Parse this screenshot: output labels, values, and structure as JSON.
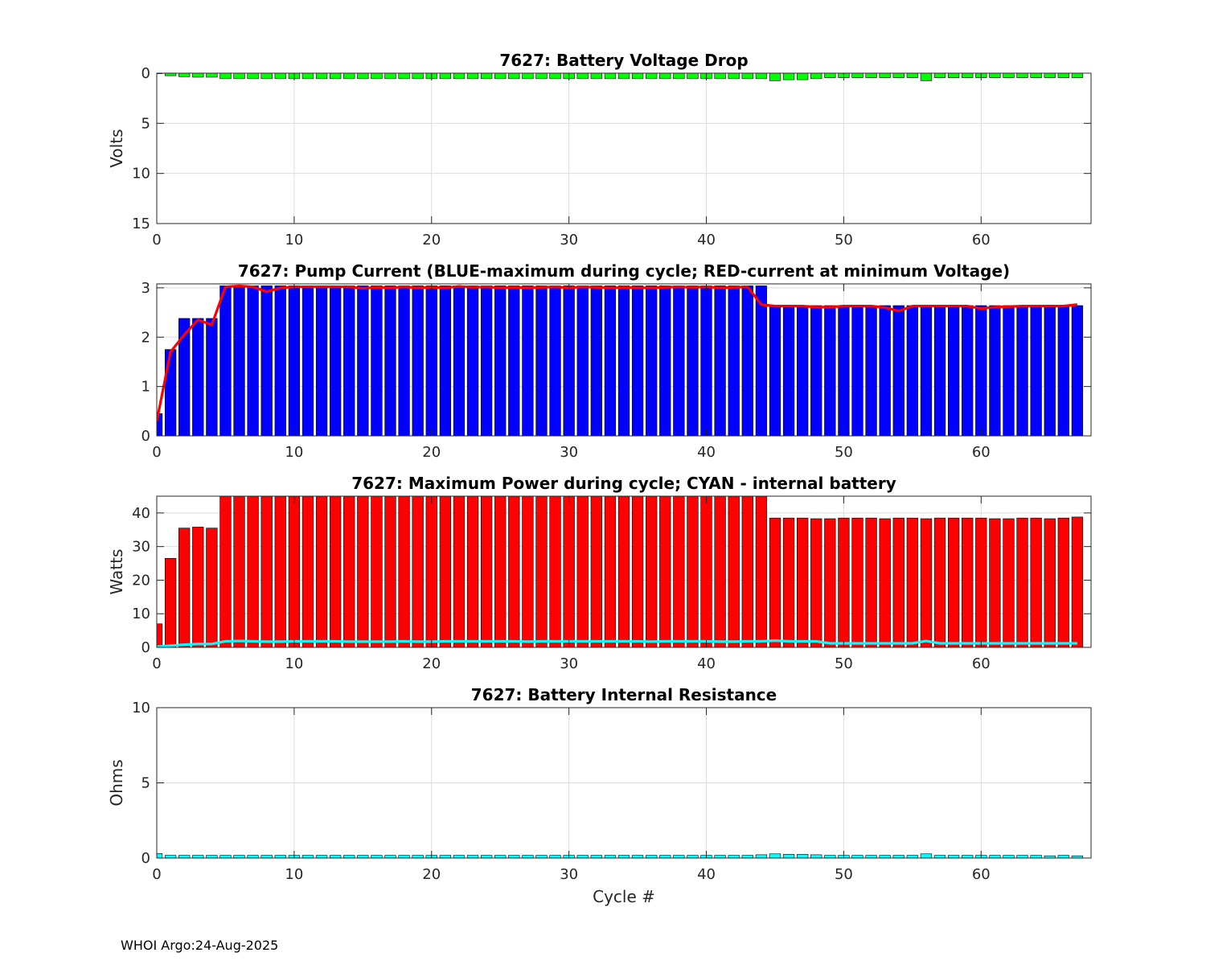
{
  "footer": "WHOI Argo:24-Aug-2025",
  "colors": {
    "voltage_bar": "#00ff00",
    "current_bar": "#0000ff",
    "current_line": "#ff0000",
    "power_bar": "#ff0000",
    "power_line": "#00ffff",
    "resistance_bar": "#00ffff",
    "grid": "#dcdcdc"
  },
  "chart_data": [
    {
      "id": "voltage",
      "type": "bar",
      "title": "7627: Battery Voltage Drop",
      "xlabel": "",
      "ylabel": "Volts",
      "xlim": [
        0,
        68
      ],
      "ylim": [
        0,
        15
      ],
      "y_reversed": true,
      "xticks": [
        0,
        10,
        20,
        30,
        40,
        50,
        60
      ],
      "yticks": [
        0,
        5,
        10,
        15
      ],
      "grid": true,
      "x": [
        0,
        1,
        2,
        3,
        4,
        5,
        6,
        7,
        8,
        9,
        10,
        11,
        12,
        13,
        14,
        15,
        16,
        17,
        18,
        19,
        20,
        21,
        22,
        23,
        24,
        25,
        26,
        27,
        28,
        29,
        30,
        31,
        32,
        33,
        34,
        35,
        36,
        37,
        38,
        39,
        40,
        41,
        42,
        43,
        44,
        45,
        46,
        47,
        48,
        49,
        50,
        51,
        52,
        53,
        54,
        55,
        56,
        57,
        58,
        59,
        60,
        61,
        62,
        63,
        64,
        65,
        66,
        67
      ],
      "values": [
        0.05,
        0.25,
        0.35,
        0.4,
        0.4,
        0.55,
        0.55,
        0.55,
        0.55,
        0.55,
        0.55,
        0.55,
        0.55,
        0.55,
        0.55,
        0.55,
        0.55,
        0.55,
        0.55,
        0.55,
        0.55,
        0.55,
        0.55,
        0.55,
        0.55,
        0.55,
        0.55,
        0.55,
        0.55,
        0.55,
        0.55,
        0.55,
        0.55,
        0.55,
        0.55,
        0.55,
        0.55,
        0.55,
        0.55,
        0.55,
        0.55,
        0.55,
        0.55,
        0.55,
        0.55,
        0.75,
        0.65,
        0.65,
        0.55,
        0.45,
        0.45,
        0.45,
        0.45,
        0.45,
        0.45,
        0.45,
        0.75,
        0.45,
        0.45,
        0.45,
        0.45,
        0.45,
        0.45,
        0.45,
        0.45,
        0.45,
        0.45,
        0.45
      ]
    },
    {
      "id": "current",
      "type": "bar",
      "title": "7627: Pump Current (BLUE-maximum during cycle; RED-current at minimum Voltage)",
      "xlabel": "",
      "ylabel": "",
      "xlim": [
        0,
        68
      ],
      "ylim": [
        0,
        3.08
      ],
      "y_reversed": false,
      "xticks": [
        0,
        10,
        20,
        30,
        40,
        50,
        60
      ],
      "yticks": [
        0,
        1,
        2,
        3
      ],
      "grid": true,
      "x": [
        0,
        1,
        2,
        3,
        4,
        5,
        6,
        7,
        8,
        9,
        10,
        11,
        12,
        13,
        14,
        15,
        16,
        17,
        18,
        19,
        20,
        21,
        22,
        23,
        24,
        25,
        26,
        27,
        28,
        29,
        30,
        31,
        32,
        33,
        34,
        35,
        36,
        37,
        38,
        39,
        40,
        41,
        42,
        43,
        44,
        45,
        46,
        47,
        48,
        49,
        50,
        51,
        52,
        53,
        54,
        55,
        56,
        57,
        58,
        59,
        60,
        61,
        62,
        63,
        64,
        65,
        66,
        67
      ],
      "values": [
        0.45,
        1.75,
        2.38,
        2.38,
        2.38,
        3.04,
        3.04,
        3.04,
        3.04,
        3.04,
        3.04,
        3.04,
        3.04,
        3.04,
        3.04,
        3.04,
        3.04,
        3.04,
        3.04,
        3.04,
        3.04,
        3.04,
        3.04,
        3.04,
        3.04,
        3.04,
        3.04,
        3.04,
        3.04,
        3.04,
        3.04,
        3.04,
        3.04,
        3.04,
        3.04,
        3.04,
        3.04,
        3.04,
        3.04,
        3.04,
        3.04,
        3.04,
        3.04,
        3.04,
        3.04,
        2.64,
        2.64,
        2.64,
        2.64,
        2.64,
        2.64,
        2.64,
        2.64,
        2.64,
        2.64,
        2.64,
        2.64,
        2.64,
        2.64,
        2.64,
        2.64,
        2.64,
        2.64,
        2.64,
        2.64,
        2.64,
        2.64,
        2.64
      ],
      "line_name": "current at minimum Voltage",
      "line": [
        0.3,
        1.7,
        2.05,
        2.35,
        2.25,
        3.02,
        3.04,
        3.02,
        2.92,
        3.0,
        3.02,
        3.02,
        3.02,
        3.02,
        3.02,
        2.99,
        3.01,
        3.0,
        3.02,
        3.0,
        3.01,
        3.0,
        3.03,
        3.01,
        3.02,
        3.0,
        3.01,
        3.0,
        3.01,
        3.02,
        3.0,
        3.02,
        3.01,
        3.0,
        3.01,
        3.0,
        3.0,
        3.01,
        3.02,
        3.01,
        3.02,
        3.0,
        3.01,
        3.02,
        2.66,
        2.63,
        2.63,
        2.63,
        2.61,
        2.61,
        2.63,
        2.63,
        2.63,
        2.6,
        2.53,
        2.63,
        2.63,
        2.63,
        2.63,
        2.63,
        2.58,
        2.61,
        2.62,
        2.63,
        2.63,
        2.63,
        2.63,
        2.66
      ]
    },
    {
      "id": "power",
      "type": "bar",
      "title": "7627: Maximum Power during cycle; CYAN - internal battery",
      "xlabel": "",
      "ylabel": "Watts",
      "xlim": [
        0,
        68
      ],
      "ylim": [
        0,
        45
      ],
      "y_reversed": false,
      "xticks": [
        0,
        10,
        20,
        30,
        40,
        50,
        60
      ],
      "yticks": [
        0,
        10,
        20,
        30,
        40
      ],
      "grid": true,
      "x": [
        0,
        1,
        2,
        3,
        4,
        5,
        6,
        7,
        8,
        9,
        10,
        11,
        12,
        13,
        14,
        15,
        16,
        17,
        18,
        19,
        20,
        21,
        22,
        23,
        24,
        25,
        26,
        27,
        28,
        29,
        30,
        31,
        32,
        33,
        34,
        35,
        36,
        37,
        38,
        39,
        40,
        41,
        42,
        43,
        44,
        45,
        46,
        47,
        48,
        49,
        50,
        51,
        52,
        53,
        54,
        55,
        56,
        57,
        58,
        59,
        60,
        61,
        62,
        63,
        64,
        65,
        66,
        67
      ],
      "values": [
        7,
        26.5,
        35.5,
        35.8,
        35.5,
        45,
        45,
        45,
        45,
        45,
        45,
        45,
        45,
        45,
        45,
        45,
        45,
        45,
        45,
        45,
        45,
        45,
        45,
        45,
        45,
        45,
        45,
        45,
        45,
        45,
        45,
        45,
        45,
        45,
        45,
        45,
        45,
        45,
        45,
        45,
        45,
        45,
        45,
        45,
        45,
        38.5,
        38.5,
        38.5,
        38.3,
        38.3,
        38.5,
        38.5,
        38.5,
        38.3,
        38.5,
        38.5,
        38.3,
        38.5,
        38.5,
        38.5,
        38.5,
        38.3,
        38.3,
        38.5,
        38.5,
        38.3,
        38.5,
        38.8
      ],
      "line_name": "internal battery",
      "line": [
        0.2,
        0.5,
        0.8,
        1.0,
        1.0,
        1.8,
        1.9,
        1.8,
        1.7,
        1.7,
        1.8,
        1.8,
        1.8,
        1.8,
        1.7,
        1.7,
        1.7,
        1.7,
        1.8,
        1.7,
        1.7,
        1.8,
        1.8,
        1.8,
        1.8,
        1.8,
        1.8,
        1.7,
        1.8,
        1.8,
        1.8,
        1.8,
        1.8,
        1.8,
        1.8,
        1.8,
        1.7,
        1.8,
        1.8,
        1.8,
        1.8,
        1.7,
        1.7,
        1.8,
        1.8,
        2.0,
        1.8,
        1.8,
        1.8,
        1.2,
        1.2,
        1.2,
        1.2,
        1.2,
        1.2,
        1.2,
        1.9,
        1.2,
        1.2,
        1.2,
        1.2,
        1.2,
        1.2,
        1.2,
        1.2,
        1.2,
        1.2,
        1.2
      ]
    },
    {
      "id": "resistance",
      "type": "bar",
      "title": "7627: Battery Internal Resistance",
      "xlabel": "Cycle #",
      "ylabel": "Ohms",
      "xlim": [
        0,
        68
      ],
      "ylim": [
        0,
        10
      ],
      "y_reversed": false,
      "xticks": [
        0,
        10,
        20,
        30,
        40,
        50,
        60
      ],
      "yticks": [
        0,
        5,
        10
      ],
      "grid": true,
      "x": [
        0,
        1,
        2,
        3,
        4,
        5,
        6,
        7,
        8,
        9,
        10,
        11,
        12,
        13,
        14,
        15,
        16,
        17,
        18,
        19,
        20,
        21,
        22,
        23,
        24,
        25,
        26,
        27,
        28,
        29,
        30,
        31,
        32,
        33,
        34,
        35,
        36,
        37,
        38,
        39,
        40,
        41,
        42,
        43,
        44,
        45,
        46,
        47,
        48,
        49,
        50,
        51,
        52,
        53,
        54,
        55,
        56,
        57,
        58,
        59,
        60,
        61,
        62,
        63,
        64,
        65,
        66,
        67
      ],
      "values": [
        0.3,
        0.18,
        0.18,
        0.18,
        0.18,
        0.18,
        0.18,
        0.18,
        0.18,
        0.18,
        0.18,
        0.18,
        0.18,
        0.18,
        0.18,
        0.18,
        0.18,
        0.18,
        0.18,
        0.18,
        0.18,
        0.18,
        0.18,
        0.18,
        0.18,
        0.18,
        0.18,
        0.18,
        0.18,
        0.18,
        0.18,
        0.18,
        0.18,
        0.18,
        0.18,
        0.18,
        0.18,
        0.18,
        0.18,
        0.18,
        0.18,
        0.18,
        0.18,
        0.18,
        0.22,
        0.28,
        0.25,
        0.25,
        0.22,
        0.18,
        0.18,
        0.18,
        0.18,
        0.18,
        0.18,
        0.18,
        0.28,
        0.18,
        0.18,
        0.18,
        0.18,
        0.18,
        0.18,
        0.18,
        0.18,
        0.15,
        0.18,
        0.15
      ]
    }
  ]
}
